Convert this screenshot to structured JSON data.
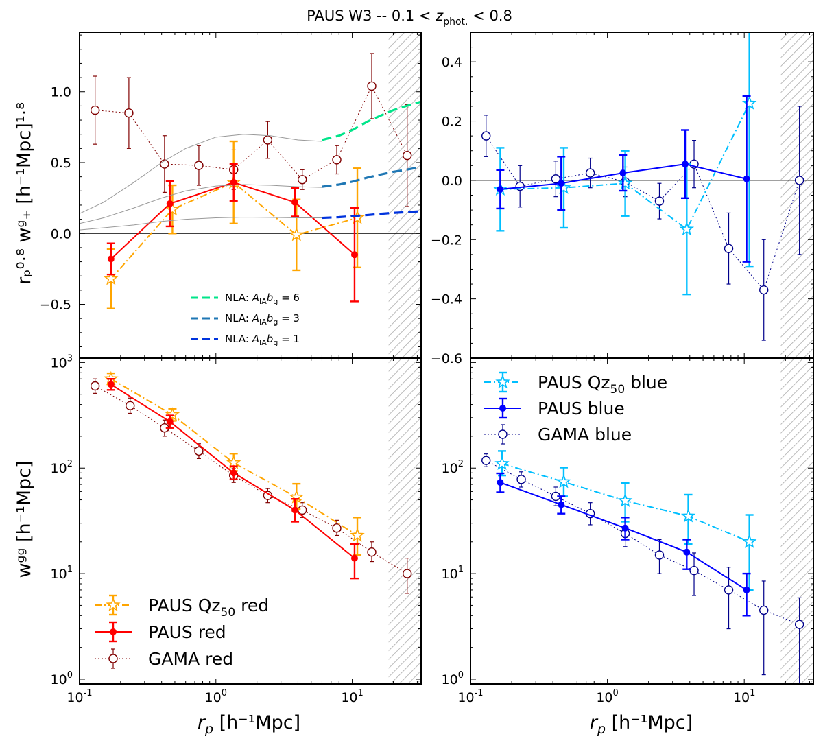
{
  "title": "PAUS W3 -- 0.1 < z_phot. < 0.8",
  "title_parts": {
    "left": "PAUS W3 -- 0.1 < ",
    "z": "z",
    "sub": "phot.",
    "right": " < 0.8"
  },
  "axis_text": {
    "xlabel_r": "r",
    "xlabel_p": "p",
    "xlabel_unit": " [h⁻¹Mpc]",
    "ylabel_top": "rₚ⁰·⁸ wᵍ₊ [h⁻¹Mpc]¹·⁸",
    "ylabel_bottom": "wᵍᵍ [h⁻¹Mpc]"
  },
  "colors": {
    "paus_qz50_red": "#ffa500",
    "paus_red": "#ff0000",
    "gama_red": "#800000",
    "paus_qz50_blue": "#00bfff",
    "paus_blue": "#0000ff",
    "gama_blue": "#00008b",
    "nla6": "#00e58a",
    "nla3": "#1f77b4",
    "nla1": "#0033dd",
    "model": "#999999"
  },
  "chart_data": [
    {
      "id": "top-left",
      "type": "line",
      "xscale": "log",
      "yscale": "linear",
      "xlim": [
        0.1,
        32
      ],
      "ylim": [
        -0.88,
        1.42
      ],
      "yticks": [
        -0.5,
        0.0,
        0.5,
        1.0
      ],
      "ytick_labels": [
        "−0.5",
        "0.0",
        "0.5",
        "1.0"
      ],
      "xticks": [],
      "zero_line": true,
      "hatch_from": 18.5,
      "series": [
        {
          "name": "GAMA red",
          "style": "gama",
          "color": "gama_red",
          "x": [
            0.13,
            0.23,
            0.42,
            0.75,
            1.35,
            2.4,
            4.3,
            7.7,
            13.9,
            25.3
          ],
          "y": [
            0.87,
            0.85,
            0.49,
            0.48,
            0.45,
            0.66,
            0.38,
            0.52,
            1.04,
            0.55
          ],
          "err": [
            0.24,
            0.25,
            0.2,
            0.14,
            0.14,
            0.13,
            0.07,
            0.1,
            0.23,
            0.36
          ]
        },
        {
          "name": "PAUS Qz50 red",
          "style": "qz",
          "color": "paus_qz50_red",
          "x": [
            0.17,
            0.48,
            1.35,
            3.9,
            10.9
          ],
          "y": [
            -0.32,
            0.17,
            0.36,
            -0.01,
            0.11
          ],
          "err": [
            0.21,
            0.17,
            0.29,
            0.25,
            0.35
          ]
        },
        {
          "name": "PAUS red",
          "style": "paus",
          "color": "paus_red",
          "x": [
            0.17,
            0.46,
            1.35,
            3.8,
            10.4
          ],
          "y": [
            -0.18,
            0.21,
            0.36,
            0.22,
            -0.15
          ],
          "err": [
            0.11,
            0.16,
            0.13,
            0.1,
            0.33
          ]
        },
        {
          "name": "NLA: A_IA b_g = 6",
          "style": "nla",
          "color": "nla6",
          "x": [
            6.0,
            8.0,
            10.0,
            13.0,
            16.0,
            20.0,
            25.0,
            32.0
          ],
          "y": [
            0.66,
            0.69,
            0.73,
            0.79,
            0.83,
            0.87,
            0.9,
            0.93
          ]
        },
        {
          "name": "NLA: A_IA b_g = 3",
          "style": "nla",
          "color": "nla3",
          "x": [
            6.0,
            8.0,
            10.0,
            13.0,
            16.0,
            20.0,
            25.0,
            32.0
          ],
          "y": [
            0.33,
            0.345,
            0.365,
            0.395,
            0.415,
            0.435,
            0.45,
            0.47
          ]
        },
        {
          "name": "NLA: A_IA b_g = 1",
          "style": "nla",
          "color": "nla1",
          "x": [
            6.0,
            8.0,
            10.0,
            13.0,
            16.0,
            20.0,
            25.0,
            32.0
          ],
          "y": [
            0.11,
            0.115,
            0.122,
            0.13,
            0.138,
            0.145,
            0.15,
            0.157
          ]
        },
        {
          "name": "model 6",
          "style": "model",
          "color": "model",
          "x": [
            0.1,
            0.15,
            0.25,
            0.4,
            0.6,
            1.0,
            1.6,
            2.5,
            4.0,
            6.0
          ],
          "y": [
            0.14,
            0.22,
            0.36,
            0.5,
            0.6,
            0.68,
            0.7,
            0.69,
            0.66,
            0.65
          ]
        },
        {
          "name": "model 3",
          "style": "model",
          "color": "model",
          "x": [
            0.1,
            0.15,
            0.25,
            0.4,
            0.6,
            1.0,
            1.6,
            2.5,
            4.0,
            6.0
          ],
          "y": [
            0.07,
            0.11,
            0.18,
            0.25,
            0.3,
            0.335,
            0.345,
            0.34,
            0.33,
            0.325
          ]
        },
        {
          "name": "model 1",
          "style": "model",
          "color": "model",
          "x": [
            0.1,
            0.15,
            0.25,
            0.4,
            0.6,
            1.0,
            1.6,
            2.5,
            4.0,
            6.0
          ],
          "y": [
            0.025,
            0.04,
            0.06,
            0.085,
            0.1,
            0.11,
            0.115,
            0.113,
            0.11,
            0.11
          ]
        }
      ],
      "legend": {
        "position": "lower-center",
        "entries": [
          {
            "series": "NLA: A_IA b_g = 6",
            "prefix": "NLA: ",
            "a": "A",
            "asub": "IA",
            "b": "b",
            "bsub": "g",
            "value": " = 6"
          },
          {
            "series": "NLA: A_IA b_g = 3",
            "prefix": "NLA: ",
            "a": "A",
            "asub": "IA",
            "b": "b",
            "bsub": "g",
            "value": " = 3"
          },
          {
            "series": "NLA: A_IA b_g = 1",
            "prefix": "NLA: ",
            "a": "A",
            "asub": "IA",
            "b": "b",
            "bsub": "g",
            "value": " = 1"
          }
        ]
      }
    },
    {
      "id": "top-right",
      "type": "line",
      "xscale": "log",
      "yscale": "linear",
      "xlim": [
        0.1,
        32
      ],
      "ylim": [
        -0.6,
        0.5
      ],
      "yticks": [
        -0.6,
        -0.4,
        -0.2,
        0.0,
        0.2,
        0.4
      ],
      "ytick_labels": [
        "−0.6",
        "−0.4",
        "−0.2",
        "0.0",
        "0.2",
        "0.4"
      ],
      "xticks": [],
      "zero_line": true,
      "hatch_from": 18.5,
      "series": [
        {
          "name": "GAMA blue",
          "style": "gama",
          "color": "gama_blue",
          "x": [
            0.13,
            0.23,
            0.42,
            0.75,
            1.35,
            2.4,
            4.3,
            7.7,
            13.9,
            25.3
          ],
          "y": [
            0.15,
            -0.02,
            0.005,
            0.025,
            -0.005,
            -0.07,
            0.055,
            -0.23,
            -0.37,
            0.0
          ],
          "err": [
            0.07,
            0.07,
            0.06,
            0.05,
            0.05,
            0.06,
            0.08,
            0.12,
            0.17,
            0.25
          ]
        },
        {
          "name": "PAUS Qz50 blue",
          "style": "qz",
          "color": "paus_qz50_blue",
          "x": [
            0.165,
            0.48,
            1.35,
            3.8,
            10.9
          ],
          "y": [
            -0.03,
            -0.025,
            -0.01,
            -0.165,
            0.26
          ],
          "err": [
            0.14,
            0.135,
            0.11,
            0.22,
            0.55
          ]
        },
        {
          "name": "PAUS blue",
          "style": "paus",
          "color": "paus_blue",
          "x": [
            0.165,
            0.46,
            1.3,
            3.7,
            10.4
          ],
          "y": [
            -0.03,
            -0.01,
            0.025,
            0.055,
            0.005
          ],
          "err": [
            0.065,
            0.09,
            0.06,
            0.115,
            0.28
          ]
        }
      ]
    },
    {
      "id": "bottom-left",
      "type": "line",
      "xscale": "log",
      "yscale": "log",
      "xlim": [
        0.1,
        32
      ],
      "ylim": [
        0.9,
        1100
      ],
      "yticks": [
        1,
        10,
        100,
        1000
      ],
      "xticks": [
        0.1,
        1,
        10
      ],
      "hatch_from": 18.5,
      "series": [
        {
          "name": "GAMA red",
          "style": "gama",
          "color": "gama_red",
          "x": [
            0.13,
            0.235,
            0.42,
            0.75,
            1.35,
            2.4,
            4.3,
            7.7,
            13.9,
            25.3
          ],
          "y": [
            600,
            390,
            240,
            145,
            85,
            55,
            40,
            27,
            16,
            10
          ],
          "elo": [
            90,
            60,
            40,
            22,
            12,
            8,
            6,
            4,
            3,
            3.5
          ],
          "ehi": [
            100,
            70,
            45,
            25,
            14,
            9,
            7,
            5,
            4,
            4
          ]
        },
        {
          "name": "PAUS Qz50 red",
          "style": "qz",
          "color": "paus_qz50_red",
          "x": [
            0.17,
            0.48,
            1.35,
            3.9,
            10.9
          ],
          "y": [
            700,
            320,
            112,
            53,
            23
          ],
          "elo": [
            80,
            40,
            18,
            12,
            8
          ],
          "ehi": [
            90,
            45,
            25,
            18,
            11
          ]
        },
        {
          "name": "PAUS red",
          "style": "paus",
          "color": "paus_red",
          "x": [
            0.17,
            0.46,
            1.35,
            3.8,
            10.4
          ],
          "y": [
            620,
            275,
            90,
            40,
            14
          ],
          "elo": [
            70,
            35,
            12,
            9,
            5
          ],
          "ehi": [
            80,
            40,
            14,
            11,
            5
          ]
        }
      ],
      "legend": {
        "position": "lower-left",
        "entries": [
          {
            "series": "PAUS Qz50 red",
            "prefix": "PAUS Qz",
            "sub": "50",
            "suffix": " red"
          },
          {
            "series": "PAUS red",
            "label": "PAUS red"
          },
          {
            "series": "GAMA red",
            "label": "GAMA red"
          }
        ]
      }
    },
    {
      "id": "bottom-right",
      "type": "line",
      "xscale": "log",
      "yscale": "log",
      "xlim": [
        0.1,
        32
      ],
      "ylim": [
        0.9,
        1100
      ],
      "yticks": [
        1,
        10,
        100
      ],
      "xticks": [
        0.1,
        1,
        10
      ],
      "hatch_from": 18.5,
      "series": [
        {
          "name": "GAMA blue",
          "style": "gama",
          "color": "gama_blue",
          "x": [
            0.13,
            0.235,
            0.42,
            0.75,
            1.35,
            2.4,
            4.3,
            7.7,
            13.9,
            25.3
          ],
          "y": [
            118,
            78,
            54,
            37,
            24,
            15,
            10.7,
            7,
            4.5,
            3.3
          ],
          "elo": [
            15,
            12,
            10,
            8,
            6,
            5,
            4.5,
            4,
            3.4,
            3.0
          ],
          "ehi": [
            18,
            14,
            12,
            10,
            7,
            6,
            5,
            4.5,
            4,
            2.6
          ]
        },
        {
          "name": "PAUS Qz50 blue",
          "style": "qz",
          "color": "paus_qz50_blue",
          "x": [
            0.17,
            0.48,
            1.35,
            3.9,
            10.9
          ],
          "y": [
            110,
            74,
            49,
            35,
            20
          ],
          "elo": [
            25,
            20,
            18,
            16,
            13
          ],
          "ehi": [
            35,
            27,
            23,
            21,
            16
          ]
        },
        {
          "name": "PAUS blue",
          "style": "paus",
          "color": "paus_blue",
          "x": [
            0.165,
            0.46,
            1.35,
            3.8,
            10.4
          ],
          "y": [
            73,
            45,
            27,
            16,
            7
          ],
          "elo": [
            14,
            8,
            6,
            5,
            3
          ],
          "ehi": [
            16,
            9,
            7,
            5,
            3
          ]
        }
      ],
      "legend": {
        "position": "top-center",
        "entries": [
          {
            "series": "PAUS Qz50 blue",
            "prefix": "PAUS Qz",
            "sub": "50",
            "suffix": " blue"
          },
          {
            "series": "PAUS blue",
            "label": "PAUS blue"
          },
          {
            "series": "GAMA blue",
            "label": "GAMA blue"
          }
        ]
      }
    }
  ]
}
